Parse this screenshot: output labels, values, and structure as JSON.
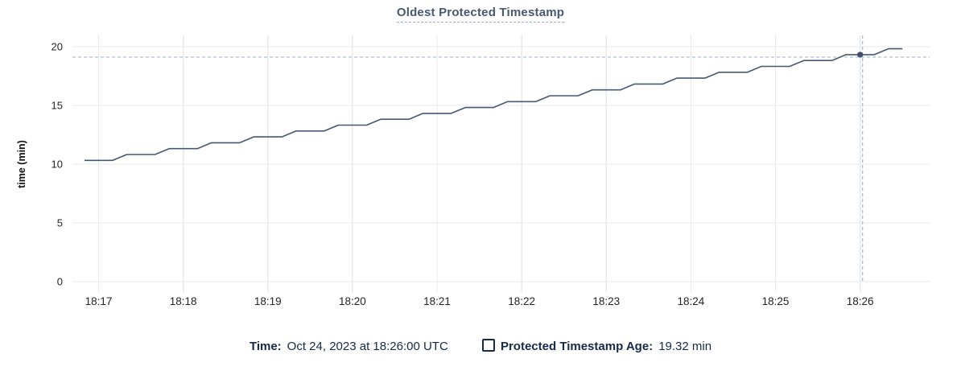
{
  "title": "Oldest Protected Timestamp",
  "footer": {
    "time_label": "Time:",
    "time_value": "Oct 24, 2023 at 18:26:00 UTC",
    "series_label": "Protected Timestamp Age:",
    "series_value": "19.32 min"
  },
  "chart_data": {
    "type": "line",
    "title": "Oldest Protected Timestamp",
    "xlabel": "",
    "ylabel": "time (min)",
    "ylim": [
      0,
      20
    ],
    "y_ticks": [
      0,
      5,
      10,
      15,
      20
    ],
    "x_tick_labels": [
      "18:17",
      "18:18",
      "18:19",
      "18:20",
      "18:21",
      "18:22",
      "18:23",
      "18:24",
      "18:25",
      "18:26"
    ],
    "grid": true,
    "legend_position": "bottom",
    "series": [
      {
        "name": "Protected Timestamp Age",
        "unit": "min",
        "t_unit": "seconds relative to 18:17:00, sampled every 10s",
        "points": [
          [
            -10,
            10.32
          ],
          [
            0,
            10.32
          ],
          [
            10,
            10.32
          ],
          [
            20,
            10.82
          ],
          [
            30,
            10.82
          ],
          [
            40,
            10.82
          ],
          [
            50,
            11.32
          ],
          [
            60,
            11.32
          ],
          [
            70,
            11.32
          ],
          [
            80,
            11.82
          ],
          [
            90,
            11.82
          ],
          [
            100,
            11.82
          ],
          [
            110,
            12.32
          ],
          [
            120,
            12.32
          ],
          [
            130,
            12.32
          ],
          [
            140,
            12.82
          ],
          [
            150,
            12.82
          ],
          [
            160,
            12.82
          ],
          [
            170,
            13.32
          ],
          [
            180,
            13.32
          ],
          [
            190,
            13.32
          ],
          [
            200,
            13.82
          ],
          [
            210,
            13.82
          ],
          [
            220,
            13.82
          ],
          [
            230,
            14.32
          ],
          [
            240,
            14.32
          ],
          [
            250,
            14.32
          ],
          [
            260,
            14.82
          ],
          [
            270,
            14.82
          ],
          [
            280,
            14.82
          ],
          [
            290,
            15.32
          ],
          [
            300,
            15.32
          ],
          [
            310,
            15.32
          ],
          [
            320,
            15.82
          ],
          [
            330,
            15.82
          ],
          [
            340,
            15.82
          ],
          [
            350,
            16.32
          ],
          [
            360,
            16.32
          ],
          [
            370,
            16.32
          ],
          [
            380,
            16.82
          ],
          [
            390,
            16.82
          ],
          [
            400,
            16.82
          ],
          [
            410,
            17.32
          ],
          [
            420,
            17.32
          ],
          [
            430,
            17.32
          ],
          [
            440,
            17.82
          ],
          [
            450,
            17.82
          ],
          [
            460,
            17.82
          ],
          [
            470,
            18.32
          ],
          [
            480,
            18.32
          ],
          [
            490,
            18.32
          ],
          [
            500,
            18.82
          ],
          [
            510,
            18.82
          ],
          [
            520,
            18.82
          ],
          [
            530,
            19.32
          ],
          [
            540,
            19.32
          ],
          [
            550,
            19.32
          ],
          [
            560,
            19.82
          ],
          [
            570,
            19.82
          ]
        ]
      }
    ],
    "highlight": {
      "t": 540,
      "time": "18:26:00",
      "value": 19.32,
      "value_label": "19.32 min"
    },
    "colors": {
      "line": "#475872",
      "dot": "#3f4e6a",
      "grid": "#e8e9ea",
      "crosshair": "#a7b9c8",
      "tick_text": "#242424",
      "title": "#475872",
      "footer_text": "#16294b"
    }
  }
}
